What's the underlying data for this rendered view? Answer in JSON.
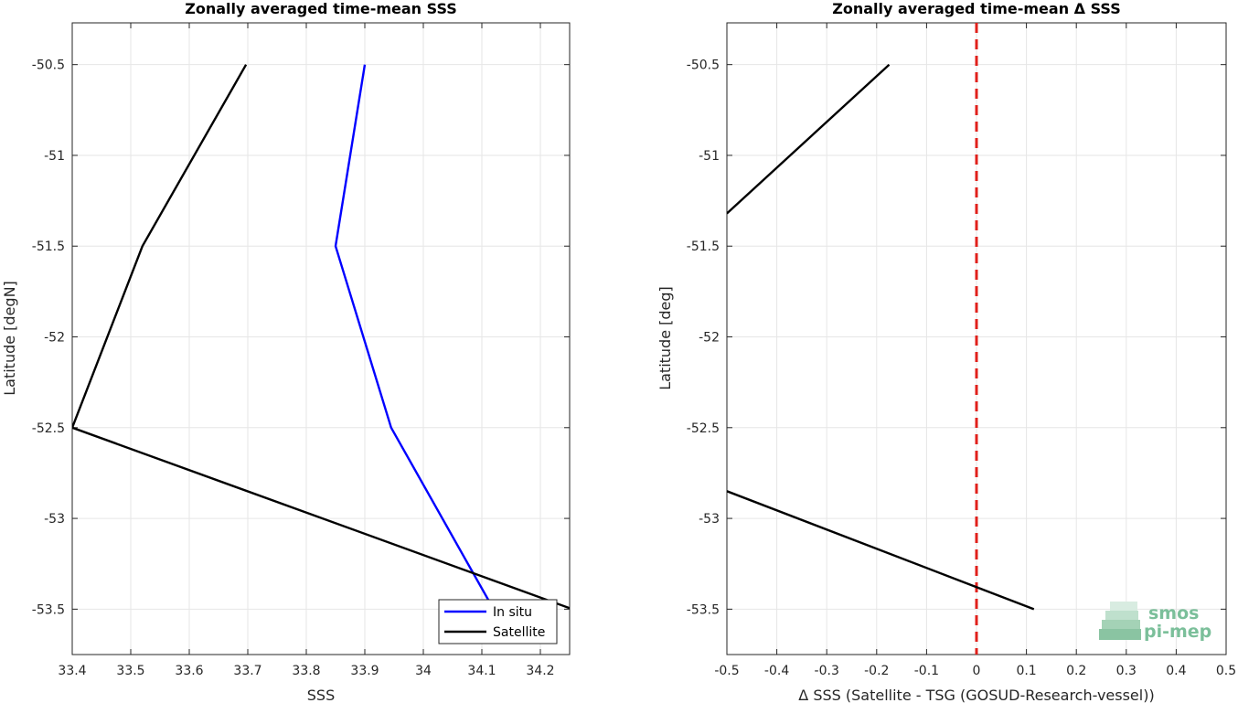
{
  "chart_data": [
    {
      "type": "line",
      "title": "Zonally averaged time-mean SSS",
      "xlabel": "SSS",
      "ylabel": "Latitude [degN]",
      "xlim": [
        33.4,
        34.25
      ],
      "ylim": [
        -53.75,
        -50.27
      ],
      "xticks": [
        33.4,
        33.5,
        33.6,
        33.7,
        33.8,
        33.9,
        34,
        34.1,
        34.2
      ],
      "xtick_labels": [
        "33.4",
        "33.5",
        "33.6",
        "33.7",
        "33.8",
        "33.9",
        "34",
        "34.1",
        "34.2"
      ],
      "yticks": [
        -50.5,
        -51,
        -51.5,
        -52,
        -52.5,
        -53,
        -53.5
      ],
      "ytick_labels": [
        "-50.5",
        "-51",
        "-51.5",
        "-52",
        "-52.5",
        "-53",
        "-53.5"
      ],
      "grid": true,
      "legend_position": "bottom-right",
      "series": [
        {
          "name": "In situ",
          "color": "#0000ff",
          "points": [
            [
              33.9,
              -50.5
            ],
            [
              33.85,
              -51.5
            ],
            [
              33.945,
              -52.5
            ],
            [
              34.12,
              -53.5
            ]
          ]
        },
        {
          "name": "Satellite",
          "color": "#000000",
          "points": [
            [
              33.697,
              -50.5
            ],
            [
              33.52,
              -51.5
            ],
            [
              33.4,
              -52.5
            ],
            [
              34.255,
              -53.5
            ]
          ]
        }
      ]
    },
    {
      "type": "line",
      "title": "Zonally averaged time-mean Δ SSS",
      "xlabel": "Δ SSS (Satellite - TSG (GOSUD-Research-vessel))",
      "ylabel": "Latitude [deg]",
      "xlim": [
        -0.5,
        0.5
      ],
      "ylim": [
        -53.75,
        -50.27
      ],
      "xticks": [
        -0.5,
        -0.4,
        -0.3,
        -0.2,
        -0.1,
        0,
        0.1,
        0.2,
        0.3,
        0.4,
        0.5
      ],
      "xtick_labels": [
        "-0.5",
        "-0.4",
        "-0.3",
        "-0.2",
        "-0.1",
        "0",
        "0.1",
        "0.2",
        "0.3",
        "0.4",
        "0.5"
      ],
      "yticks": [
        -50.5,
        -51,
        -51.5,
        -52,
        -52.5,
        -53,
        -53.5
      ],
      "ytick_labels": [
        "-50.5",
        "-51",
        "-51.5",
        "-52",
        "-52.5",
        "-53",
        "-53.5"
      ],
      "grid": true,
      "reference_line": {
        "x": 0,
        "color": "#e0201b",
        "style": "dashed"
      },
      "series": [
        {
          "color": "#000000",
          "points": [
            [
              -0.175,
              -50.5
            ],
            [
              -0.5,
              -51.32
            ]
          ]
        },
        {
          "color": "#000000",
          "points": [
            [
              -0.5,
              -52.85
            ],
            [
              0.115,
              -53.5
            ]
          ]
        }
      ]
    }
  ],
  "logo": {
    "line1": "smos",
    "line2": "pi-mep"
  }
}
